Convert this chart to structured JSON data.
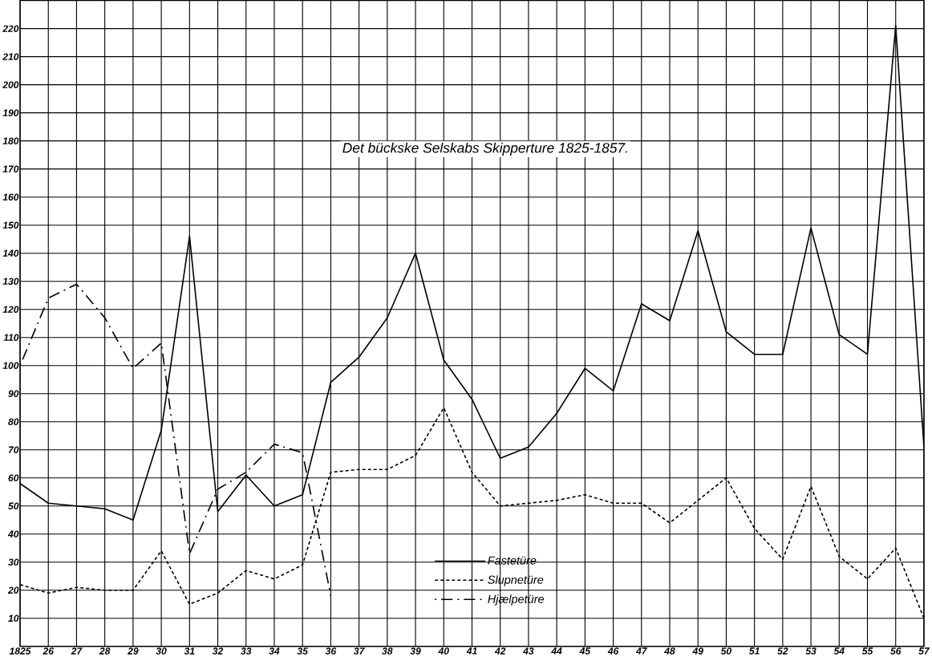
{
  "chart_data": {
    "type": "line",
    "title": "Det bückske Selskabs Skipperture 1825-1857.",
    "x": [
      1825,
      1826,
      1827,
      1828,
      1829,
      1830,
      1831,
      1832,
      1833,
      1834,
      1835,
      1836,
      1837,
      1838,
      1839,
      1840,
      1841,
      1842,
      1843,
      1844,
      1845,
      1846,
      1847,
      1848,
      1849,
      1850,
      1851,
      1852,
      1853,
      1854,
      1855,
      1856,
      1857
    ],
    "series": [
      {
        "name": "Fastetüre",
        "color": "#000000",
        "line_style": "solid",
        "values": [
          58,
          51,
          50,
          49,
          45,
          77,
          146,
          48,
          61,
          50,
          54,
          94,
          103,
          117,
          140,
          102,
          88,
          67,
          71,
          83,
          99,
          91,
          122,
          116,
          148,
          112,
          104,
          104,
          149,
          111,
          104,
          221,
          71
        ]
      },
      {
        "name": "Slupnetüre",
        "color": "#000000",
        "line_style": "dashed",
        "values": [
          22,
          19,
          21,
          20,
          20,
          34,
          15,
          19,
          27,
          24,
          29,
          62,
          63,
          63,
          68,
          85,
          62,
          50,
          51,
          52,
          54,
          51,
          51,
          44,
          52,
          60,
          42,
          31,
          57,
          32,
          24,
          35,
          10
        ]
      },
      {
        "name": "Hjælpetüre",
        "color": "#000000",
        "line_style": "dashdot",
        "values": [
          100,
          124,
          129,
          117,
          99,
          108,
          33,
          56,
          62,
          72,
          69,
          18,
          null,
          null,
          null,
          null,
          null,
          null,
          null,
          null,
          null,
          null,
          null,
          null,
          null,
          null,
          null,
          null,
          null,
          null,
          null,
          null,
          null
        ]
      }
    ],
    "xlim": [
      1825,
      1857
    ],
    "ylim": [
      0,
      230
    ],
    "xticks": [
      {
        "value": 1825,
        "label": "1825"
      },
      {
        "value": 1826,
        "label": "26"
      },
      {
        "value": 1827,
        "label": "27"
      },
      {
        "value": 1828,
        "label": "28"
      },
      {
        "value": 1829,
        "label": "29"
      },
      {
        "value": 1830,
        "label": "30"
      },
      {
        "value": 1831,
        "label": "31"
      },
      {
        "value": 1832,
        "label": "32"
      },
      {
        "value": 1833,
        "label": "33"
      },
      {
        "value": 1834,
        "label": "34"
      },
      {
        "value": 1835,
        "label": "35"
      },
      {
        "value": 1836,
        "label": "36"
      },
      {
        "value": 1837,
        "label": "37"
      },
      {
        "value": 1838,
        "label": "38"
      },
      {
        "value": 1839,
        "label": "39"
      },
      {
        "value": 1840,
        "label": "40"
      },
      {
        "value": 1841,
        "label": "41"
      },
      {
        "value": 1842,
        "label": "42"
      },
      {
        "value": 1843,
        "label": "43"
      },
      {
        "value": 1844,
        "label": "44"
      },
      {
        "value": 1845,
        "label": "45"
      },
      {
        "value": 1846,
        "label": "46"
      },
      {
        "value": 1847,
        "label": "47"
      },
      {
        "value": 1848,
        "label": "48"
      },
      {
        "value": 1849,
        "label": "49"
      },
      {
        "value": 1850,
        "label": "50"
      },
      {
        "value": 1851,
        "label": "51"
      },
      {
        "value": 1852,
        "label": "52"
      },
      {
        "value": 1853,
        "label": "53"
      },
      {
        "value": 1854,
        "label": "54"
      },
      {
        "value": 1855,
        "label": "55"
      },
      {
        "value": 1856,
        "label": "56"
      },
      {
        "value": 1857,
        "label": "57"
      }
    ],
    "yticks": [
      10,
      20,
      30,
      40,
      50,
      60,
      70,
      80,
      90,
      100,
      110,
      120,
      130,
      140,
      150,
      160,
      170,
      180,
      190,
      200,
      210,
      220
    ],
    "grid": true,
    "legend": "bottom"
  }
}
